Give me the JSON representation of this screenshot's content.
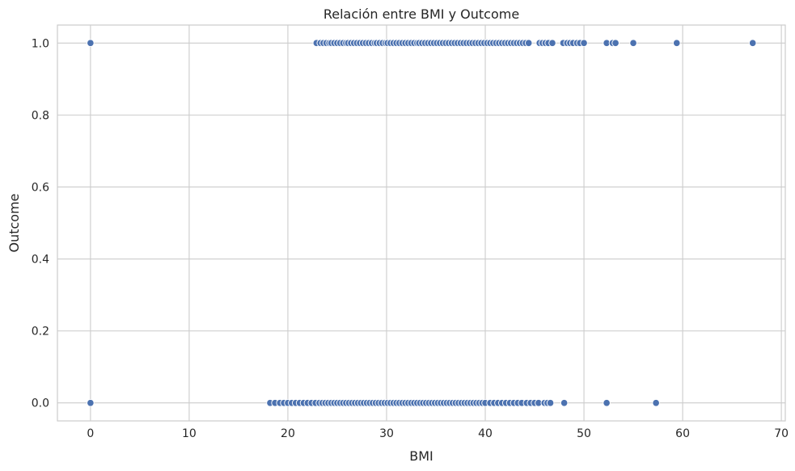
{
  "chart_data": {
    "type": "scatter",
    "title": "Relación entre BMI y Outcome",
    "xlabel": "BMI",
    "ylabel": "Outcome",
    "xlim": [
      -3.35,
      70.4
    ],
    "ylim": [
      -0.05,
      1.05
    ],
    "xticks": [
      0,
      10,
      20,
      30,
      40,
      50,
      60,
      70
    ],
    "yticks": [
      0.0,
      0.2,
      0.4,
      0.6,
      0.8,
      1.0
    ],
    "xtick_labels": [
      "0",
      "10",
      "20",
      "30",
      "40",
      "50",
      "60",
      "70"
    ],
    "ytick_labels": [
      "0.0",
      "0.2",
      "0.4",
      "0.6",
      "0.8",
      "1.0"
    ],
    "grid": true,
    "legend": "none",
    "marker_color": "#4C72B0",
    "marker_edge_color": "#ffffff",
    "grid_color": "#cccccc",
    "outcome_1": [
      0,
      22.9,
      23.3,
      23.6,
      23.9,
      24.2,
      24.4,
      24.7,
      25.0,
      25.3,
      25.6,
      25.9,
      26.1,
      26.4,
      26.7,
      27.0,
      27.3,
      27.6,
      27.9,
      28.2,
      28.5,
      28.8,
      29.0,
      29.3,
      29.6,
      29.9,
      30.1,
      30.4,
      30.7,
      31.0,
      31.3,
      31.6,
      31.9,
      32.2,
      32.5,
      32.8,
      33.1,
      33.3,
      33.6,
      33.9,
      34.2,
      34.5,
      34.8,
      35.1,
      35.4,
      35.7,
      36.0,
      36.3,
      36.6,
      36.9,
      37.2,
      37.5,
      37.8,
      38.1,
      38.4,
      38.7,
      39.0,
      39.3,
      39.6,
      39.9,
      40.2,
      40.5,
      40.8,
      41.1,
      41.4,
      41.7,
      42.0,
      42.3,
      42.6,
      42.9,
      43.2,
      43.5,
      43.8,
      44.1,
      44.4,
      45.5,
      45.8,
      46.1,
      46.4,
      46.8,
      47.9,
      48.3,
      48.6,
      48.9,
      49.3,
      49.6,
      50.0,
      52.3,
      52.9,
      53.2,
      55.0,
      59.4,
      67.1
    ],
    "outcome_0": [
      0,
      18.2,
      18.7,
      19.2,
      19.6,
      20.0,
      20.4,
      20.8,
      21.2,
      21.6,
      22.0,
      22.4,
      22.8,
      23.2,
      23.5,
      23.8,
      24.1,
      24.4,
      24.7,
      25.0,
      25.3,
      25.6,
      25.9,
      26.2,
      26.5,
      26.8,
      27.1,
      27.4,
      27.7,
      28.0,
      28.3,
      28.6,
      28.9,
      29.2,
      29.5,
      29.8,
      30.1,
      30.4,
      30.7,
      31.0,
      31.3,
      31.6,
      31.9,
      32.2,
      32.5,
      32.8,
      33.1,
      33.4,
      33.7,
      34.0,
      34.3,
      34.6,
      34.9,
      35.2,
      35.5,
      35.8,
      36.1,
      36.4,
      36.7,
      37.0,
      37.3,
      37.6,
      37.9,
      38.2,
      38.5,
      38.8,
      39.1,
      39.4,
      39.7,
      40.0,
      40.5,
      40.9,
      41.3,
      41.7,
      42.1,
      42.5,
      42.9,
      43.3,
      43.7,
      44.2,
      44.6,
      45.0,
      45.4,
      46.0,
      46.3,
      46.6,
      48.0,
      52.3,
      57.3
    ]
  }
}
